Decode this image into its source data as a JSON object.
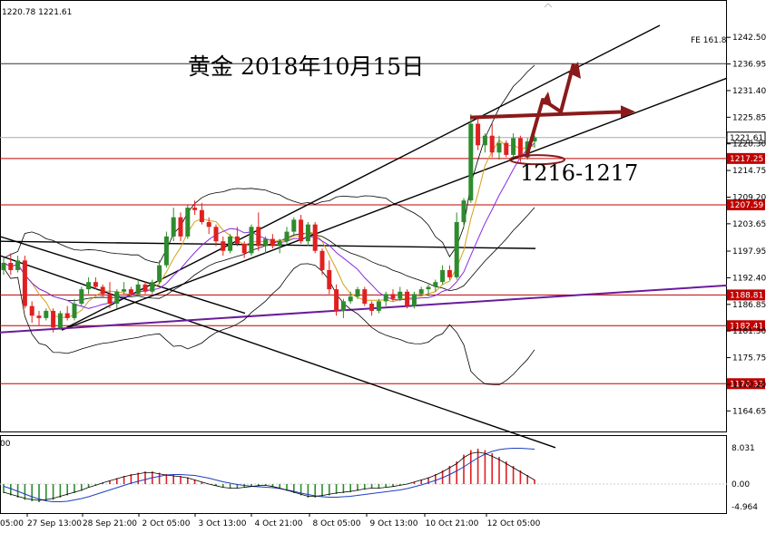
{
  "chart_data": [
    {
      "type": "candlestick",
      "title": "黄金  2018年10月15日",
      "annotation_zone": "1216-1217",
      "header_values": [
        "1220.78",
        "1221.61"
      ],
      "fe_label": "FE 161.8",
      "ylim": [
        1161.5,
        1246.5
      ],
      "y_ticks": [
        "1242.50",
        "1236.95",
        "1231.40",
        "1225.85",
        "1220.30",
        "1214.75",
        "1209.20",
        "1203.65",
        "1197.95",
        "1192.40",
        "1186.85",
        "1181.30",
        "1175.75",
        "1170.20",
        "1164.65"
      ],
      "x_ticks": [
        "27 Sep 13:00",
        "28 Sep 21:00",
        "2 Oct 05:00",
        "3 Oct 13:00",
        "4 Oct 21:00",
        "8 Oct 05:00",
        "9 Oct 13:00",
        "10 Oct 21:00",
        "12 Oct 05:00"
      ],
      "x_tick_partial_left": "05:00",
      "price_lines": [
        {
          "value": 1217.25,
          "label": "1217.25"
        },
        {
          "value": 1207.59,
          "label": "1207.59"
        },
        {
          "value": 1188.81,
          "label": "1188.81"
        },
        {
          "value": 1182.41,
          "label": "1182.41"
        },
        {
          "value": 1170.33,
          "label": "1170.33"
        }
      ],
      "current_price": {
        "value": 1221.61,
        "label": "1221.61"
      },
      "fe_level": 1237.0,
      "candles": [
        [
          1194.0,
          1196.5,
          1193.0,
          1195.5
        ],
        [
          1195.5,
          1197.5,
          1193.0,
          1194.0
        ],
        [
          1194.0,
          1197.0,
          1193.5,
          1196.0
        ],
        [
          1196.0,
          1197.0,
          1186.0,
          1186.5
        ],
        [
          1186.5,
          1187.5,
          1183.0,
          1184.5
        ],
        [
          1184.5,
          1185.5,
          1182.5,
          1184.0
        ],
        [
          1184.0,
          1186.0,
          1183.5,
          1185.5
        ],
        [
          1185.5,
          1186.0,
          1181.0,
          1182.0
        ],
        [
          1182.0,
          1185.5,
          1181.5,
          1185.0
        ],
        [
          1185.0,
          1186.5,
          1183.5,
          1184.0
        ],
        [
          1184.0,
          1188.0,
          1183.5,
          1187.0
        ],
        [
          1187.0,
          1190.5,
          1186.5,
          1190.0
        ],
        [
          1190.0,
          1192.5,
          1189.0,
          1191.5
        ],
        [
          1191.5,
          1192.5,
          1190.0,
          1190.5
        ],
        [
          1190.5,
          1191.0,
          1188.5,
          1189.0
        ],
        [
          1189.0,
          1191.5,
          1186.0,
          1187.0
        ],
        [
          1187.0,
          1190.0,
          1186.0,
          1189.5
        ],
        [
          1189.5,
          1191.5,
          1189.0,
          1190.0
        ],
        [
          1190.0,
          1190.5,
          1188.5,
          1189.0
        ],
        [
          1189.0,
          1192.0,
          1188.5,
          1191.0
        ],
        [
          1191.0,
          1191.5,
          1189.0,
          1189.5
        ],
        [
          1189.5,
          1192.0,
          1189.0,
          1191.5
        ],
        [
          1191.5,
          1196.0,
          1191.0,
          1195.0
        ],
        [
          1195.0,
          1202.0,
          1194.5,
          1201.0
        ],
        [
          1201.0,
          1207.0,
          1200.0,
          1205.0
        ],
        [
          1205.0,
          1206.0,
          1200.0,
          1201.0
        ],
        [
          1201.0,
          1207.5,
          1200.5,
          1207.0
        ],
        [
          1207.0,
          1208.5,
          1205.5,
          1206.5
        ],
        [
          1206.5,
          1208.0,
          1203.5,
          1204.0
        ],
        [
          1204.0,
          1205.0,
          1201.5,
          1203.0
        ],
        [
          1203.0,
          1203.5,
          1199.0,
          1200.0
        ],
        [
          1200.0,
          1201.0,
          1197.0,
          1198.0
        ],
        [
          1198.0,
          1201.5,
          1197.5,
          1201.0
        ],
        [
          1201.0,
          1203.0,
          1199.0,
          1199.5
        ],
        [
          1199.5,
          1200.0,
          1196.5,
          1197.5
        ],
        [
          1197.5,
          1203.5,
          1197.0,
          1203.0
        ],
        [
          1203.0,
          1206.0,
          1198.0,
          1199.0
        ],
        [
          1199.0,
          1201.0,
          1197.5,
          1200.5
        ],
        [
          1200.5,
          1201.5,
          1198.5,
          1199.0
        ],
        [
          1199.0,
          1200.5,
          1197.5,
          1200.0
        ],
        [
          1200.0,
          1203.0,
          1199.5,
          1202.0
        ],
        [
          1202.0,
          1205.0,
          1201.0,
          1204.5
        ],
        [
          1204.5,
          1205.5,
          1199.5,
          1200.0
        ],
        [
          1200.0,
          1204.0,
          1199.0,
          1203.5
        ],
        [
          1203.5,
          1204.0,
          1197.5,
          1198.0
        ],
        [
          1198.0,
          1198.5,
          1193.0,
          1194.0
        ],
        [
          1194.0,
          1196.0,
          1189.0,
          1190.0
        ],
        [
          1190.0,
          1191.0,
          1184.5,
          1185.5
        ],
        [
          1185.5,
          1188.0,
          1184.0,
          1187.5
        ],
        [
          1187.5,
          1189.5,
          1187.0,
          1188.5
        ],
        [
          1188.5,
          1190.5,
          1188.0,
          1190.0
        ],
        [
          1190.0,
          1190.5,
          1186.5,
          1187.0
        ],
        [
          1187.0,
          1187.5,
          1184.5,
          1185.5
        ],
        [
          1185.5,
          1188.0,
          1185.0,
          1187.5
        ],
        [
          1187.5,
          1189.5,
          1186.5,
          1189.0
        ],
        [
          1189.0,
          1190.0,
          1187.5,
          1188.0
        ],
        [
          1188.0,
          1190.5,
          1187.5,
          1189.5
        ],
        [
          1189.5,
          1190.0,
          1186.0,
          1186.5
        ],
        [
          1186.5,
          1189.5,
          1186.0,
          1189.0
        ],
        [
          1189.0,
          1190.5,
          1188.5,
          1190.0
        ],
        [
          1190.0,
          1191.0,
          1188.5,
          1190.5
        ],
        [
          1190.5,
          1192.0,
          1189.5,
          1191.5
        ],
        [
          1191.5,
          1195.0,
          1191.0,
          1194.0
        ],
        [
          1194.0,
          1195.0,
          1192.0,
          1192.5
        ],
        [
          1192.5,
          1206.0,
          1192.0,
          1204.0
        ],
        [
          1204.0,
          1209.0,
          1203.0,
          1208.5
        ],
        [
          1208.5,
          1226.5,
          1208.0,
          1224.5
        ],
        [
          1224.5,
          1226.0,
          1219.0,
          1220.0
        ],
        [
          1220.0,
          1222.5,
          1218.5,
          1222.0
        ],
        [
          1222.0,
          1224.5,
          1217.5,
          1218.5
        ],
        [
          1218.5,
          1222.0,
          1217.0,
          1220.5
        ],
        [
          1220.5,
          1221.0,
          1217.5,
          1218.0
        ],
        [
          1218.0,
          1222.5,
          1217.5,
          1221.5
        ],
        [
          1221.5,
          1222.0,
          1216.5,
          1217.5
        ],
        [
          1217.5,
          1221.5,
          1217.0,
          1220.8
        ],
        [
          1220.8,
          1222.0,
          1219.5,
          1221.61
        ]
      ],
      "macd_ylim": [
        -6.0,
        10.0
      ],
      "macd_ticks": [
        "8.031",
        "0.00",
        "-4.964"
      ],
      "macd_hist": [
        -2.0,
        -2.5,
        -3.0,
        -3.5,
        -3.8,
        -4.0,
        -3.8,
        -3.5,
        -3.0,
        -2.5,
        -2.0,
        -1.5,
        -0.8,
        -0.3,
        0.3,
        0.8,
        1.3,
        1.8,
        2.2,
        2.5,
        2.8,
        2.8,
        2.5,
        2.2,
        2.0,
        1.8,
        1.5,
        1.0,
        0.5,
        0.0,
        -0.4,
        -0.8,
        -1.0,
        -1.0,
        -0.8,
        -0.6,
        -0.4,
        -0.3,
        -0.6,
        -1.0,
        -1.5,
        -2.0,
        -2.5,
        -3.0,
        -3.0,
        -2.8,
        -2.5,
        -2.2,
        -2.0,
        -1.8,
        -1.5,
        -1.2,
        -1.0,
        -1.0,
        -0.8,
        -0.6,
        -0.3,
        0.0,
        0.5,
        1.0,
        1.5,
        2.2,
        3.0,
        4.0,
        5.0,
        6.5,
        7.5,
        7.8,
        7.5,
        6.8,
        6.0,
        5.0,
        4.0,
        3.0,
        2.0,
        1.0
      ],
      "macd_signal": [
        -0.5,
        -1.0,
        -1.6,
        -2.2,
        -2.8,
        -3.3,
        -3.7,
        -3.9,
        -3.9,
        -3.8,
        -3.5,
        -3.2,
        -2.8,
        -2.3,
        -1.8,
        -1.3,
        -0.8,
        -0.3,
        0.2,
        0.6,
        1.0,
        1.4,
        1.7,
        2.0,
        2.1,
        2.1,
        2.0,
        1.9,
        1.6,
        1.3,
        0.9,
        0.5,
        0.2,
        -0.1,
        -0.3,
        -0.5,
        -0.6,
        -0.7,
        -0.8,
        -1.0,
        -1.3,
        -1.6,
        -2.0,
        -2.3,
        -2.6,
        -2.8,
        -2.9,
        -2.9,
        -2.8,
        -2.7,
        -2.5,
        -2.3,
        -2.1,
        -1.9,
        -1.7,
        -1.5,
        -1.3,
        -1.0,
        -0.6,
        -0.2,
        0.3,
        0.8,
        1.4,
        2.1,
        2.9,
        3.8,
        4.8,
        5.8,
        6.6,
        7.2,
        7.6,
        7.8,
        7.9,
        7.9,
        7.8,
        7.7
      ]
    }
  ],
  "colors": {
    "bull": "#2e8b2e",
    "bear": "#e02020",
    "price_line": "#c00000",
    "purple_line": "#6a1b9a",
    "arrow": "#8b1a1a",
    "tag_bg": "#c00000",
    "ma_fast": "#d4a017",
    "ma_slow": "#8a2be2"
  }
}
